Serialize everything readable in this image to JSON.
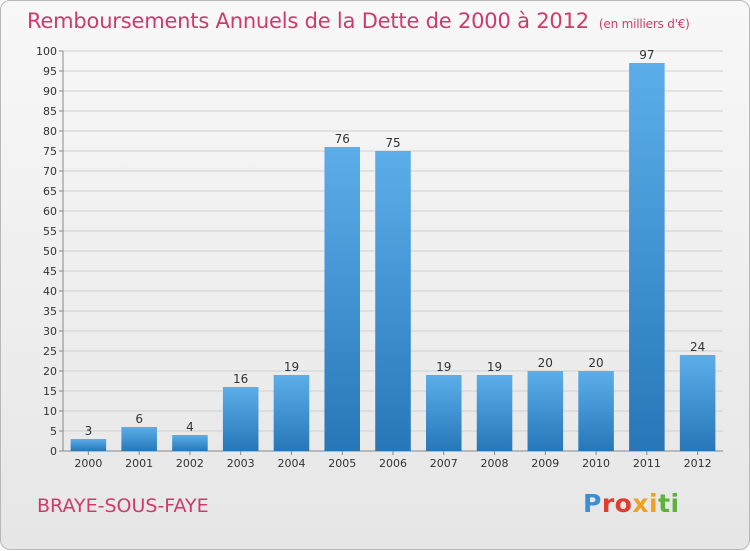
{
  "header": {
    "title": "Remboursements Annuels de la Dette de 2000 à 2012",
    "unit": "(en milliers d'€)"
  },
  "footer": {
    "commune": "BRAYE-SOUS-FAYE",
    "logo_text": "Proxiti"
  },
  "colors": {
    "title": "#cf3a6e",
    "bar_top": "#5caeea",
    "bar_bottom": "#2777b8",
    "grid": "#d0d0d0",
    "logo_letters": [
      "#3a8fd8",
      "#e23b2f",
      "#e23b2f",
      "#f0a020",
      "#f0a020",
      "#5bb33a",
      "#5bb33a"
    ]
  },
  "chart_data": {
    "type": "bar",
    "categories": [
      "2000",
      "2001",
      "2002",
      "2003",
      "2004",
      "2005",
      "2006",
      "2007",
      "2008",
      "2009",
      "2010",
      "2011",
      "2012"
    ],
    "values": [
      3,
      6,
      4,
      16,
      19,
      76,
      75,
      19,
      19,
      20,
      20,
      97,
      24
    ],
    "ylim": [
      0,
      100
    ],
    "ytick_step": 5,
    "grid": true,
    "xlabel": "",
    "ylabel": ""
  }
}
